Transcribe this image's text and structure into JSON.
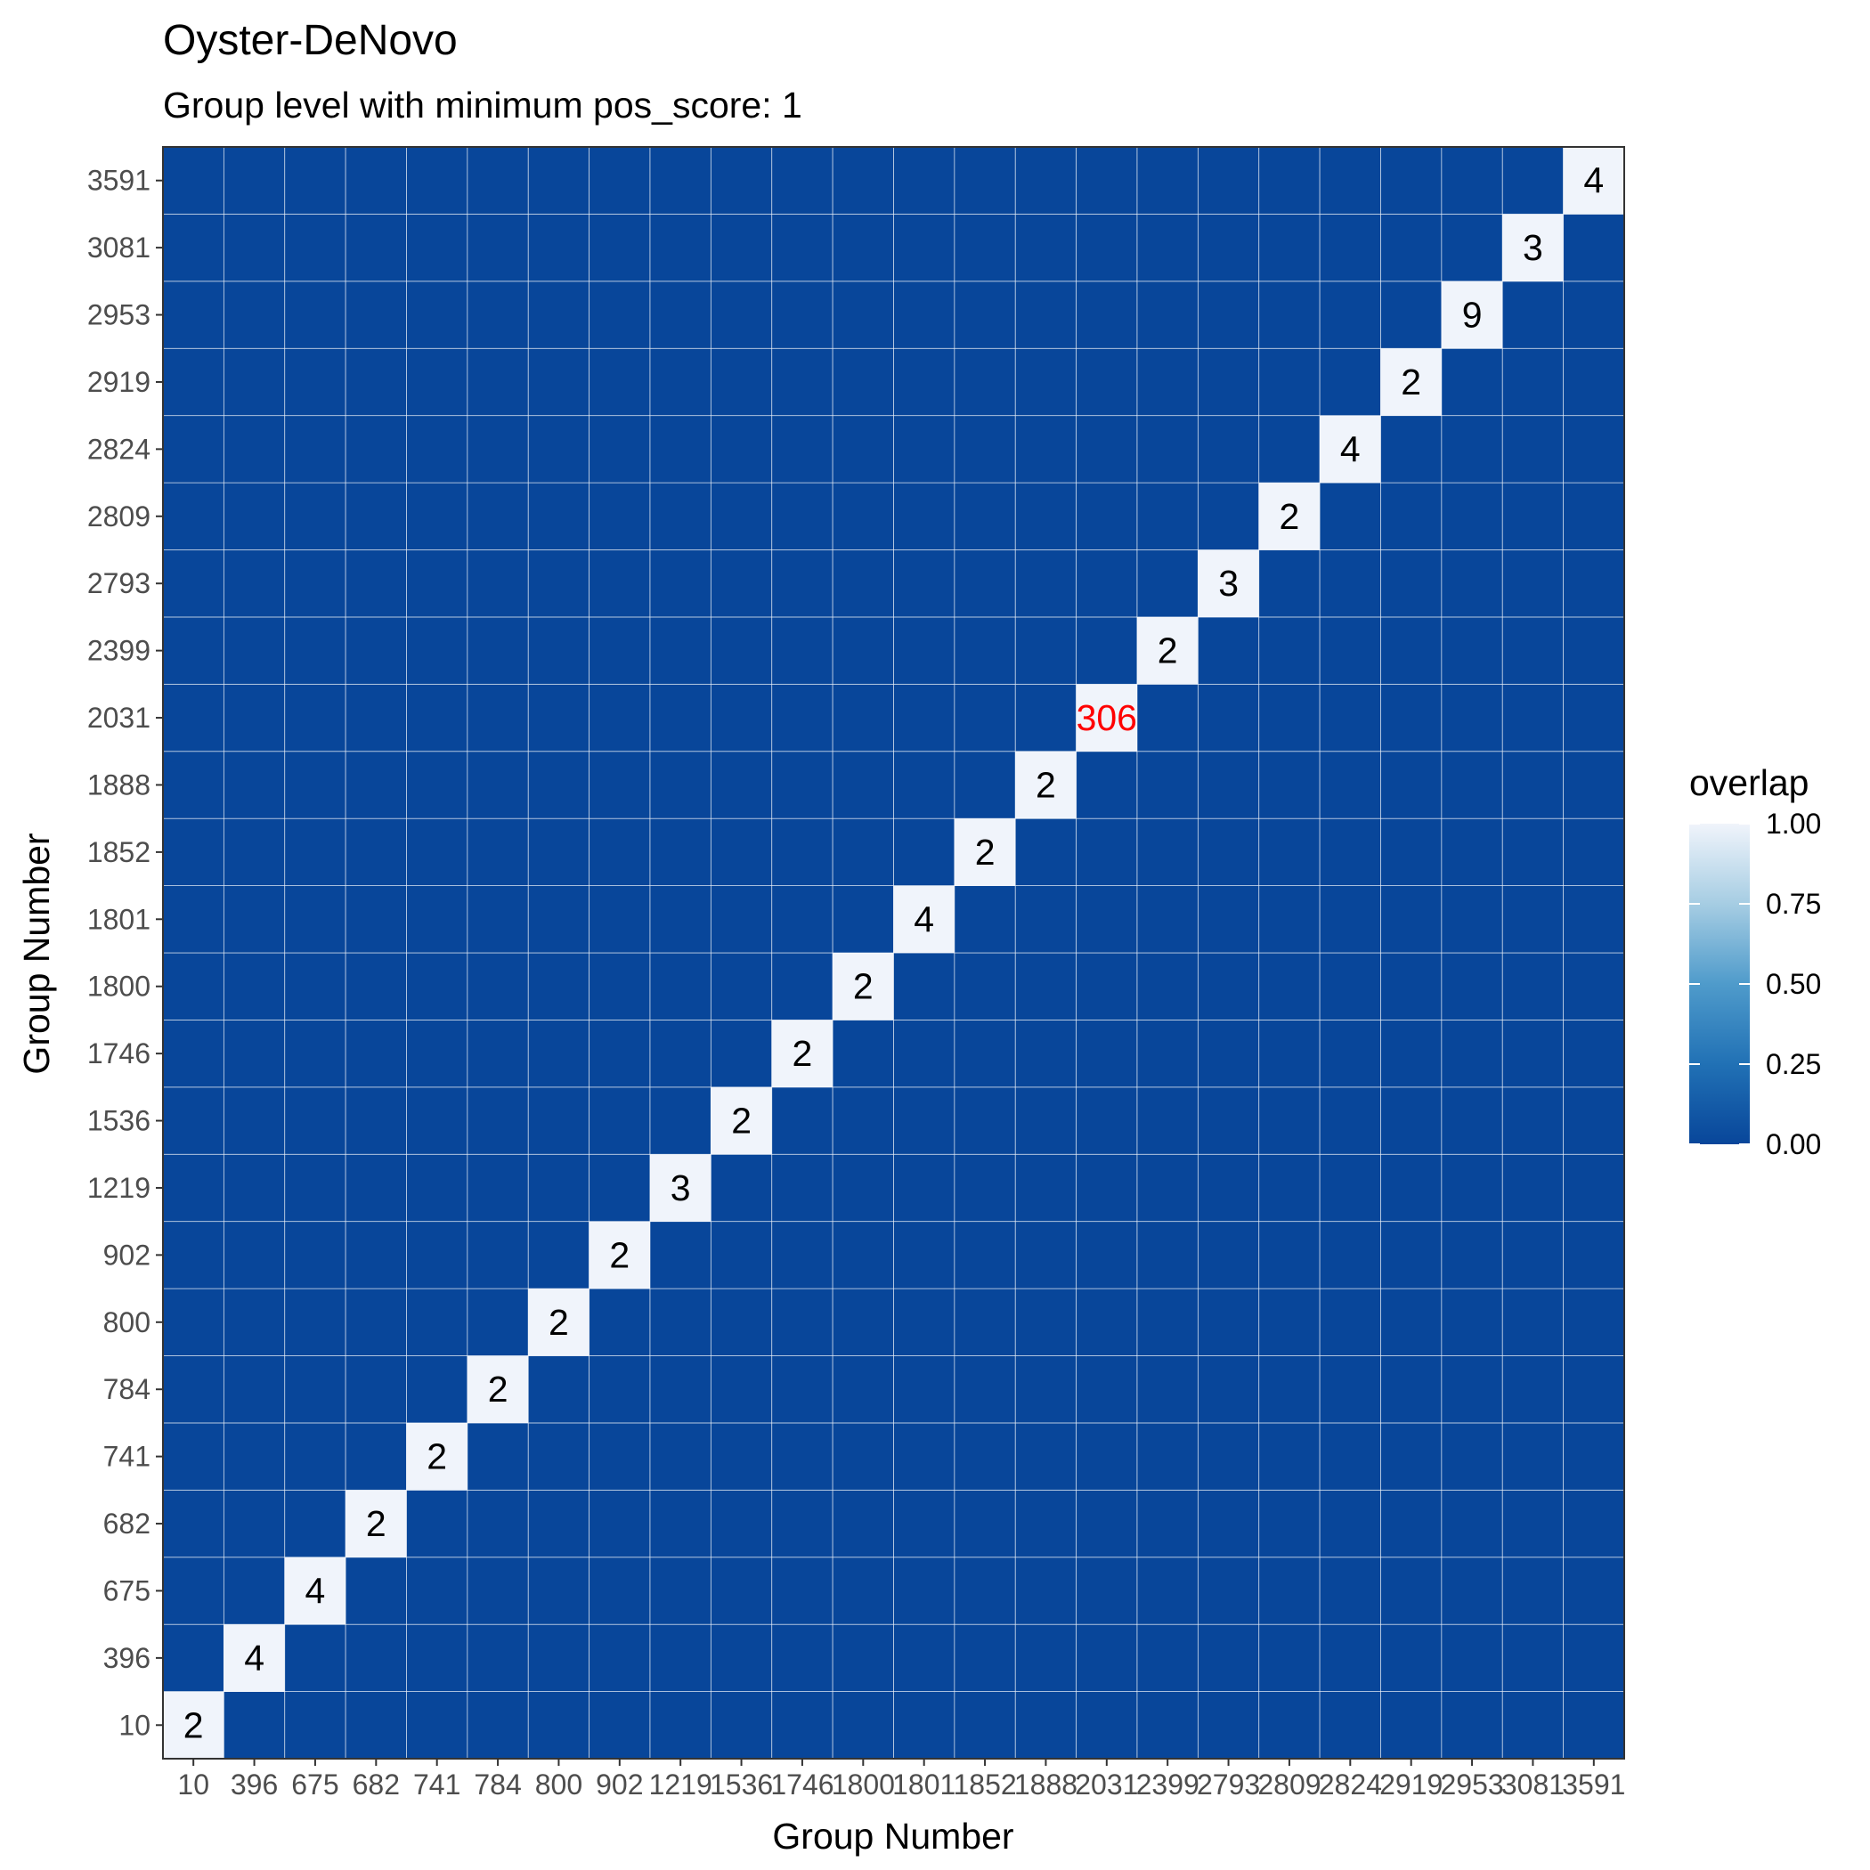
{
  "chart_data": {
    "type": "heatmap",
    "title": "Oyster-DeNovo",
    "subtitle": "Group level with minimum pos_score: 1",
    "xlabel": "Group Number",
    "ylabel": "Group Number",
    "categories": [
      "10",
      "396",
      "675",
      "682",
      "741",
      "784",
      "800",
      "902",
      "1219",
      "1536",
      "1746",
      "1800",
      "1801",
      "1852",
      "1888",
      "2031",
      "2399",
      "2793",
      "2809",
      "2824",
      "2919",
      "2953",
      "3081",
      "3591"
    ],
    "diagonal_labels": [
      "2",
      "4",
      "4",
      "2",
      "2",
      "2",
      "2",
      "2",
      "3",
      "2",
      "2",
      "2",
      "4",
      "2",
      "2",
      "306",
      "2",
      "3",
      "2",
      "4",
      "2",
      "9",
      "3",
      "4"
    ],
    "diagonal_overlap": 1.0,
    "off_diagonal_overlap": 0.0,
    "highlighted_label": "306",
    "colors": {
      "low": "#08469a",
      "high": "#f0f4fb",
      "label_default": "#000000",
      "label_highlight": "#ff0000",
      "grid": "#ffffff"
    },
    "legend": {
      "title": "overlap",
      "ticks": [
        "1.00",
        "0.75",
        "0.50",
        "0.25",
        "0.00"
      ],
      "range": [
        0,
        1
      ],
      "placement": "right"
    },
    "grid": true
  }
}
